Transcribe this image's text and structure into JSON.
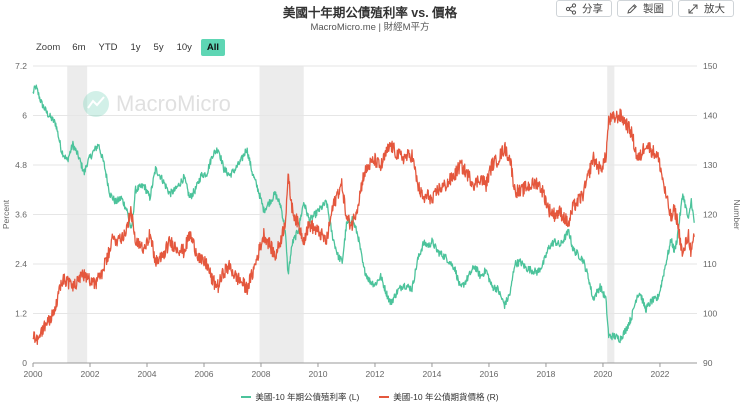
{
  "header": {
    "title": "美國十年期公債殖利率 vs. 價格",
    "subtitle": "MacroMicro.me | 財經M平方"
  },
  "toolbar": {
    "share_label": "分享",
    "draw_label": "製圖",
    "expand_label": "放大"
  },
  "zoom": {
    "label": "Zoom",
    "options": [
      "6m",
      "YTD",
      "1y",
      "5y",
      "10y",
      "All"
    ],
    "active": "All"
  },
  "watermark": "MacroMicro",
  "colors": {
    "yield": "#4cc39b",
    "price": "#e4573d",
    "recession": "#ececec",
    "grid": "#e6e6e6",
    "zoom_active": "#5ed6b4"
  },
  "chart_data": {
    "type": "line",
    "title": "美國十年期公債殖利率 vs. 價格",
    "x_ticks": [
      "2000",
      "2002",
      "2004",
      "2006",
      "2008",
      "2010",
      "2012",
      "2014",
      "2016",
      "2018",
      "2020",
      "2022"
    ],
    "x_range": [
      2000.0,
      2023.3
    ],
    "y_left": {
      "label": "Percent",
      "ticks": [
        "0",
        "1.2",
        "2.4",
        "3.6",
        "4.8",
        "6",
        "7.2"
      ],
      "range": [
        0,
        7.2
      ]
    },
    "y_right": {
      "label": "Number",
      "ticks": [
        "90",
        "100",
        "110",
        "120",
        "130",
        "140",
        "150"
      ],
      "range": [
        90,
        150
      ]
    },
    "recession_bands": [
      [
        2001.2,
        2001.9
      ],
      [
        2007.95,
        2009.5
      ],
      [
        2020.15,
        2020.4
      ]
    ],
    "series": [
      {
        "name": "美國-10 年期公債殖利率 (L)",
        "axis": "left",
        "color": "#4cc39b",
        "points": [
          [
            2000.0,
            6.55
          ],
          [
            2000.1,
            6.7
          ],
          [
            2000.3,
            6.3
          ],
          [
            2000.5,
            6.05
          ],
          [
            2000.8,
            5.8
          ],
          [
            2001.0,
            5.15
          ],
          [
            2001.2,
            4.9
          ],
          [
            2001.4,
            5.3
          ],
          [
            2001.6,
            5.0
          ],
          [
            2001.8,
            4.6
          ],
          [
            2001.9,
            4.85
          ],
          [
            2002.1,
            5.1
          ],
          [
            2002.3,
            5.3
          ],
          [
            2002.5,
            4.8
          ],
          [
            2002.7,
            4.1
          ],
          [
            2002.9,
            3.9
          ],
          [
            2003.1,
            4.0
          ],
          [
            2003.3,
            3.7
          ],
          [
            2003.45,
            3.2
          ],
          [
            2003.6,
            4.2
          ],
          [
            2003.9,
            4.3
          ],
          [
            2004.1,
            4.0
          ],
          [
            2004.3,
            4.7
          ],
          [
            2004.5,
            4.5
          ],
          [
            2004.8,
            4.1
          ],
          [
            2005.0,
            4.2
          ],
          [
            2005.3,
            4.5
          ],
          [
            2005.5,
            4.0
          ],
          [
            2005.7,
            4.2
          ],
          [
            2005.9,
            4.55
          ],
          [
            2006.1,
            4.6
          ],
          [
            2006.3,
            5.05
          ],
          [
            2006.5,
            5.2
          ],
          [
            2006.7,
            4.7
          ],
          [
            2006.9,
            4.55
          ],
          [
            2007.1,
            4.7
          ],
          [
            2007.3,
            4.9
          ],
          [
            2007.5,
            5.2
          ],
          [
            2007.7,
            4.6
          ],
          [
            2007.9,
            4.2
          ],
          [
            2008.1,
            3.7
          ],
          [
            2008.3,
            3.9
          ],
          [
            2008.5,
            4.1
          ],
          [
            2008.7,
            3.8
          ],
          [
            2008.85,
            3.2
          ],
          [
            2008.95,
            2.15
          ],
          [
            2009.1,
            2.9
          ],
          [
            2009.3,
            3.2
          ],
          [
            2009.5,
            3.9
          ],
          [
            2009.7,
            3.45
          ],
          [
            2009.9,
            3.6
          ],
          [
            2010.1,
            3.75
          ],
          [
            2010.3,
            3.9
          ],
          [
            2010.5,
            3.1
          ],
          [
            2010.7,
            2.6
          ],
          [
            2010.85,
            2.45
          ],
          [
            2011.0,
            3.35
          ],
          [
            2011.2,
            3.5
          ],
          [
            2011.4,
            3.1
          ],
          [
            2011.6,
            2.3
          ],
          [
            2011.8,
            2.0
          ],
          [
            2012.0,
            1.9
          ],
          [
            2012.2,
            2.1
          ],
          [
            2012.4,
            1.7
          ],
          [
            2012.55,
            1.45
          ],
          [
            2012.8,
            1.75
          ],
          [
            2013.0,
            1.9
          ],
          [
            2013.3,
            1.8
          ],
          [
            2013.5,
            2.5
          ],
          [
            2013.7,
            2.9
          ],
          [
            2013.9,
            2.85
          ],
          [
            2014.0,
            2.95
          ],
          [
            2014.2,
            2.7
          ],
          [
            2014.5,
            2.55
          ],
          [
            2014.8,
            2.3
          ],
          [
            2015.0,
            1.8
          ],
          [
            2015.2,
            2.0
          ],
          [
            2015.5,
            2.35
          ],
          [
            2015.7,
            2.1
          ],
          [
            2015.9,
            2.25
          ],
          [
            2016.1,
            1.85
          ],
          [
            2016.3,
            1.8
          ],
          [
            2016.55,
            1.4
          ],
          [
            2016.75,
            1.7
          ],
          [
            2016.9,
            2.4
          ],
          [
            2017.1,
            2.45
          ],
          [
            2017.3,
            2.3
          ],
          [
            2017.5,
            2.25
          ],
          [
            2017.7,
            2.2
          ],
          [
            2017.9,
            2.4
          ],
          [
            2018.1,
            2.8
          ],
          [
            2018.3,
            2.95
          ],
          [
            2018.5,
            2.85
          ],
          [
            2018.8,
            3.2
          ],
          [
            2018.95,
            2.75
          ],
          [
            2019.1,
            2.65
          ],
          [
            2019.3,
            2.5
          ],
          [
            2019.5,
            2.05
          ],
          [
            2019.65,
            1.55
          ],
          [
            2019.9,
            1.85
          ],
          [
            2020.1,
            1.55
          ],
          [
            2020.2,
            0.65
          ],
          [
            2020.4,
            0.65
          ],
          [
            2020.6,
            0.58
          ],
          [
            2020.8,
            0.8
          ],
          [
            2021.0,
            1.1
          ],
          [
            2021.2,
            1.65
          ],
          [
            2021.3,
            1.7
          ],
          [
            2021.5,
            1.3
          ],
          [
            2021.7,
            1.5
          ],
          [
            2021.9,
            1.55
          ],
          [
            2022.0,
            1.75
          ],
          [
            2022.2,
            2.4
          ],
          [
            2022.4,
            3.0
          ],
          [
            2022.5,
            2.7
          ],
          [
            2022.6,
            3.0
          ],
          [
            2022.8,
            4.1
          ],
          [
            2022.9,
            3.8
          ],
          [
            2023.0,
            3.45
          ],
          [
            2023.1,
            3.95
          ],
          [
            2023.2,
            3.4
          ]
        ]
      },
      {
        "name": "美國-10 年公債期貨價格 (R)",
        "axis": "right",
        "color": "#e4573d",
        "points": [
          [
            2000.0,
            95.5
          ],
          [
            2000.2,
            95.0
          ],
          [
            2000.4,
            97.5
          ],
          [
            2000.6,
            99.0
          ],
          [
            2000.8,
            101.0
          ],
          [
            2001.0,
            107.0
          ],
          [
            2001.2,
            106.5
          ],
          [
            2001.4,
            105.5
          ],
          [
            2001.6,
            106.5
          ],
          [
            2001.8,
            108.0
          ],
          [
            2002.0,
            107.0
          ],
          [
            2002.2,
            106.0
          ],
          [
            2002.4,
            108.0
          ],
          [
            2002.6,
            111.0
          ],
          [
            2002.8,
            115.0
          ],
          [
            2003.0,
            115.0
          ],
          [
            2003.2,
            116.0
          ],
          [
            2003.45,
            120.5
          ],
          [
            2003.6,
            114.0
          ],
          [
            2003.9,
            113.5
          ],
          [
            2004.1,
            116.0
          ],
          [
            2004.3,
            110.5
          ],
          [
            2004.5,
            111.0
          ],
          [
            2004.8,
            114.5
          ],
          [
            2005.0,
            113.5
          ],
          [
            2005.3,
            112.5
          ],
          [
            2005.5,
            116.0
          ],
          [
            2005.7,
            113.0
          ],
          [
            2005.9,
            110.5
          ],
          [
            2006.1,
            110.0
          ],
          [
            2006.3,
            106.5
          ],
          [
            2006.5,
            105.5
          ],
          [
            2006.7,
            108.5
          ],
          [
            2006.9,
            109.5
          ],
          [
            2007.1,
            107.5
          ],
          [
            2007.3,
            106.5
          ],
          [
            2007.5,
            105.0
          ],
          [
            2007.7,
            108.0
          ],
          [
            2007.9,
            112.0
          ],
          [
            2008.1,
            116.0
          ],
          [
            2008.3,
            114.0
          ],
          [
            2008.5,
            111.5
          ],
          [
            2008.7,
            115.0
          ],
          [
            2008.85,
            118.5
          ],
          [
            2008.95,
            127.5
          ],
          [
            2009.1,
            121.0
          ],
          [
            2009.3,
            118.0
          ],
          [
            2009.5,
            115.0
          ],
          [
            2009.7,
            118.0
          ],
          [
            2009.9,
            117.0
          ],
          [
            2010.1,
            116.0
          ],
          [
            2010.3,
            114.5
          ],
          [
            2010.5,
            121.0
          ],
          [
            2010.7,
            124.5
          ],
          [
            2010.85,
            126.0
          ],
          [
            2011.0,
            119.0
          ],
          [
            2011.2,
            118.0
          ],
          [
            2011.4,
            122.0
          ],
          [
            2011.6,
            128.0
          ],
          [
            2011.8,
            130.0
          ],
          [
            2012.0,
            131.0
          ],
          [
            2012.2,
            129.5
          ],
          [
            2012.4,
            132.5
          ],
          [
            2012.55,
            134.0
          ],
          [
            2012.8,
            132.0
          ],
          [
            2013.0,
            131.5
          ],
          [
            2013.3,
            132.0
          ],
          [
            2013.5,
            126.0
          ],
          [
            2013.7,
            123.0
          ],
          [
            2013.9,
            124.0
          ],
          [
            2014.0,
            122.5
          ],
          [
            2014.2,
            125.0
          ],
          [
            2014.5,
            126.0
          ],
          [
            2014.8,
            128.0
          ],
          [
            2015.0,
            130.0
          ],
          [
            2015.2,
            128.5
          ],
          [
            2015.5,
            126.0
          ],
          [
            2015.7,
            127.5
          ],
          [
            2015.9,
            126.0
          ],
          [
            2016.1,
            130.0
          ],
          [
            2016.3,
            131.0
          ],
          [
            2016.55,
            133.5
          ],
          [
            2016.75,
            131.0
          ],
          [
            2016.9,
            125.0
          ],
          [
            2017.1,
            124.5
          ],
          [
            2017.3,
            125.5
          ],
          [
            2017.5,
            126.0
          ],
          [
            2017.7,
            126.5
          ],
          [
            2017.9,
            124.5
          ],
          [
            2018.1,
            121.0
          ],
          [
            2018.3,
            120.0
          ],
          [
            2018.5,
            120.5
          ],
          [
            2018.8,
            118.0
          ],
          [
            2018.95,
            121.5
          ],
          [
            2019.1,
            122.5
          ],
          [
            2019.3,
            124.0
          ],
          [
            2019.5,
            128.0
          ],
          [
            2019.65,
            131.5
          ],
          [
            2019.9,
            129.0
          ],
          [
            2020.1,
            131.5
          ],
          [
            2020.2,
            139.0
          ],
          [
            2020.4,
            139.5
          ],
          [
            2020.6,
            140.0
          ],
          [
            2020.8,
            138.5
          ],
          [
            2021.0,
            136.5
          ],
          [
            2021.2,
            131.5
          ],
          [
            2021.3,
            131.5
          ],
          [
            2021.5,
            134.5
          ],
          [
            2021.7,
            133.0
          ],
          [
            2021.9,
            132.0
          ],
          [
            2022.0,
            130.0
          ],
          [
            2022.2,
            124.0
          ],
          [
            2022.4,
            119.0
          ],
          [
            2022.5,
            121.0
          ],
          [
            2022.6,
            119.0
          ],
          [
            2022.8,
            111.5
          ],
          [
            2022.9,
            114.0
          ],
          [
            2023.0,
            116.0
          ],
          [
            2023.1,
            112.0
          ],
          [
            2023.2,
            115.5
          ]
        ]
      }
    ]
  }
}
